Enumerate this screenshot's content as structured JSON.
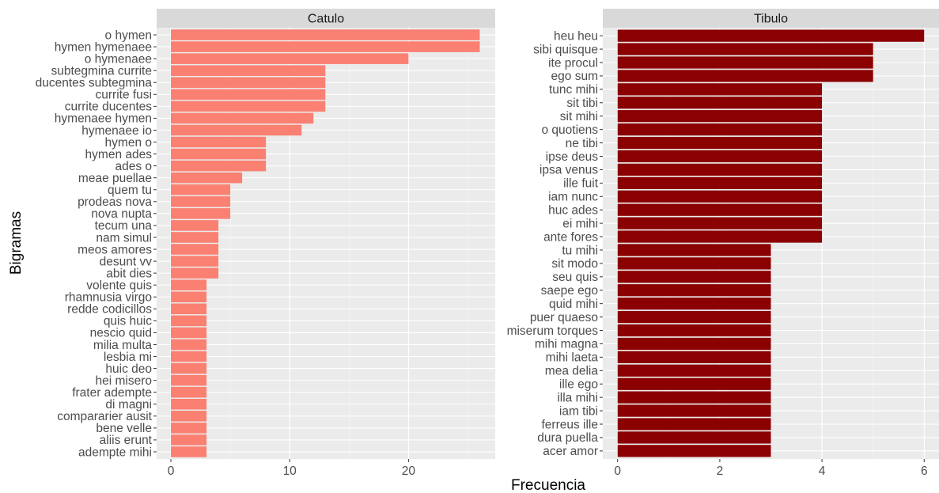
{
  "chart_data": {
    "type": "bar",
    "orientation": "horizontal",
    "xlabel": "Frecuencia",
    "ylabel": "Bigramas",
    "grid": true,
    "panels": [
      {
        "name": "Catulo",
        "color": "#FA8072",
        "xlim": [
          -1.2,
          27.3
        ],
        "xticks": [
          0,
          10,
          20
        ],
        "categories": [
          "o hymen",
          "hymen hymenaee",
          "o hymenaee",
          "subtegmina currite",
          "ducentes subtegmina",
          "currite fusi",
          "currite ducentes",
          "hymenaee hymen",
          "hymenaee io",
          "hymen o",
          "hymen ades",
          "ades o",
          "meae puellae",
          "quem tu",
          "prodeas nova",
          "nova nupta",
          "tecum una",
          "nam simul",
          "meos amores",
          "desunt vv",
          "abit dies",
          "volente quis",
          "rhamnusia virgo",
          "redde codicillos",
          "quis huic",
          "nescio quid",
          "milia multa",
          "lesbia mi",
          "huic deo",
          "hei misero",
          "frater adempte",
          "di magni",
          "compararier ausit",
          "bene velle",
          "aliis erunt",
          "adempte mihi"
        ],
        "values": [
          26,
          26,
          20,
          13,
          13,
          13,
          13,
          12,
          11,
          8,
          8,
          8,
          6,
          5,
          5,
          5,
          4,
          4,
          4,
          4,
          4,
          3,
          3,
          3,
          3,
          3,
          3,
          3,
          3,
          3,
          3,
          3,
          3,
          3,
          3,
          3
        ]
      },
      {
        "name": "Tibulo",
        "color": "#8B0000",
        "xlim": [
          -0.29,
          6.29
        ],
        "xticks": [
          0,
          2,
          4,
          6
        ],
        "categories": [
          "heu heu",
          "sibi quisque",
          "ite procul",
          "ego sum",
          "tunc mihi",
          "sit tibi",
          "sit mihi",
          "o quotiens",
          "ne tibi",
          "ipse deus",
          "ipsa venus",
          "ille fuit",
          "iam nunc",
          "huc ades",
          "ei mihi",
          "ante fores",
          "tu mihi",
          "sit modo",
          "seu quis",
          "saepe ego",
          "quid mihi",
          "puer quaeso",
          "miserum torques",
          "mihi magna",
          "mihi laeta",
          "mea delia",
          "ille ego",
          "illa mihi",
          "iam tibi",
          "ferreus ille",
          "dura puella",
          "acer amor"
        ],
        "values": [
          6,
          5,
          5,
          5,
          4,
          4,
          4,
          4,
          4,
          4,
          4,
          4,
          4,
          4,
          4,
          4,
          3,
          3,
          3,
          3,
          3,
          3,
          3,
          3,
          3,
          3,
          3,
          3,
          3,
          3,
          3,
          3
        ]
      }
    ]
  }
}
